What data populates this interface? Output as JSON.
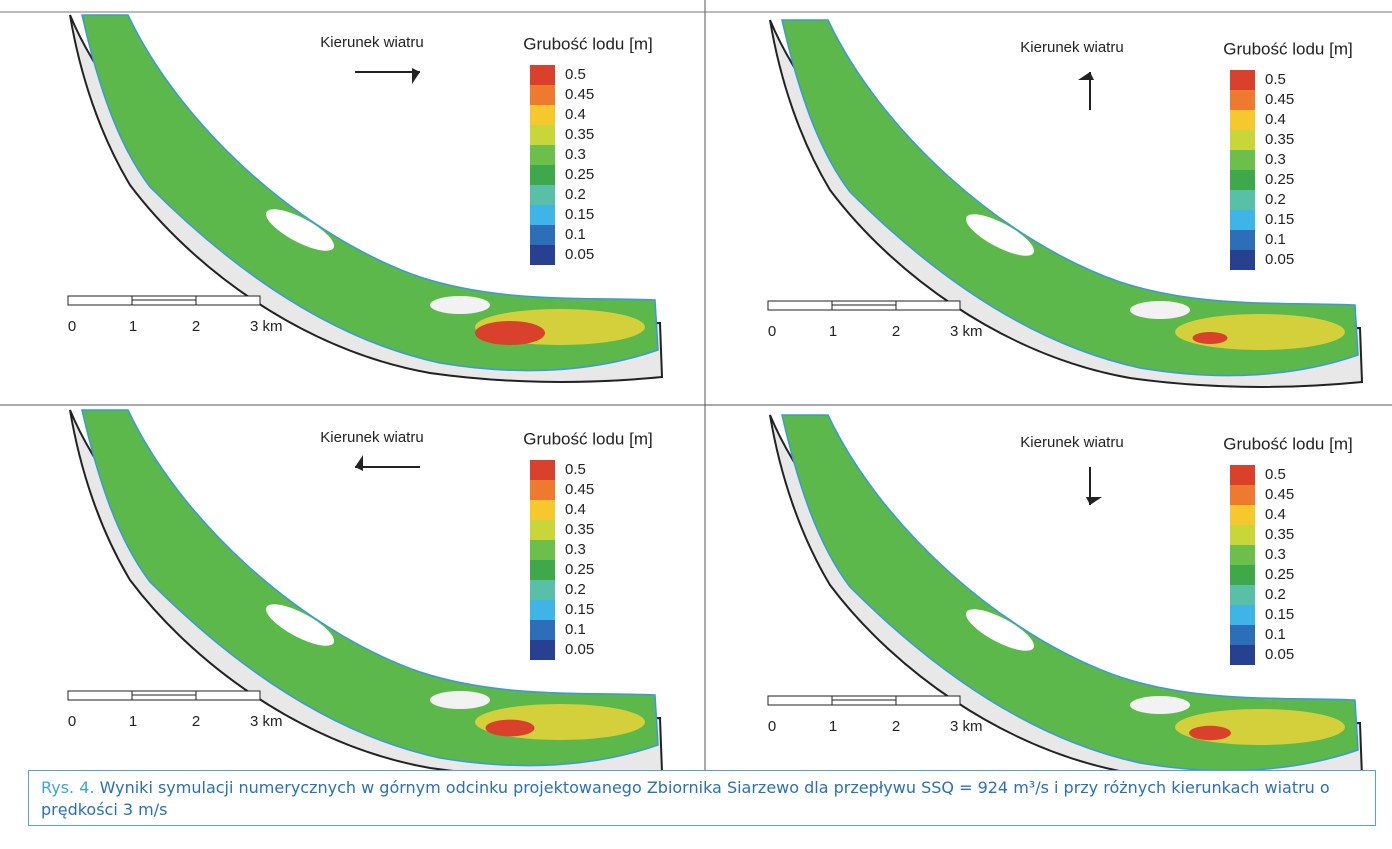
{
  "panels": [
    {
      "wind_label": "Kierunek wiatru",
      "legend_title": "Grubość lodu [m]",
      "legend": [
        "0.5",
        "0.45",
        "0.4",
        "0.35",
        "0.3",
        "0.25",
        "0.2",
        "0.15",
        "0.1",
        "0.05"
      ],
      "scale": [
        "0",
        "1",
        "2",
        "3 km"
      ]
    },
    {
      "wind_label": "Kierunek wiatru",
      "legend_title": "Grubość lodu [m]",
      "legend": [
        "0.5",
        "0.45",
        "0.4",
        "0.35",
        "0.3",
        "0.25",
        "0.2",
        "0.15",
        "0.1",
        "0.05"
      ],
      "scale": [
        "0",
        "1",
        "2",
        "3 km"
      ]
    },
    {
      "wind_label": "Kierunek wiatru",
      "legend_title": "Grubość lodu [m]",
      "legend": [
        "0.5",
        "0.45",
        "0.4",
        "0.35",
        "0.3",
        "0.25",
        "0.2",
        "0.15",
        "0.1",
        "0.05"
      ],
      "scale": [
        "0",
        "1",
        "2",
        "3 km"
      ]
    },
    {
      "wind_label": "Kierunek wiatru",
      "legend_title": "Grubość lodu [m]",
      "legend": [
        "0.5",
        "0.45",
        "0.4",
        "0.35",
        "0.3",
        "0.25",
        "0.2",
        "0.15",
        "0.1",
        "0.05"
      ],
      "scale": [
        "0",
        "1",
        "2",
        "3 km"
      ]
    }
  ],
  "caption": {
    "label": "Rys. 4.",
    "text": "Wyniki symulacji numerycznych w górnym odcinku projektowanego Zbiornika Siarzewo dla przepływu SSQ = 924 m³/s i przy różnych kierunkach wiatru o prędkości 3 m/s"
  }
}
